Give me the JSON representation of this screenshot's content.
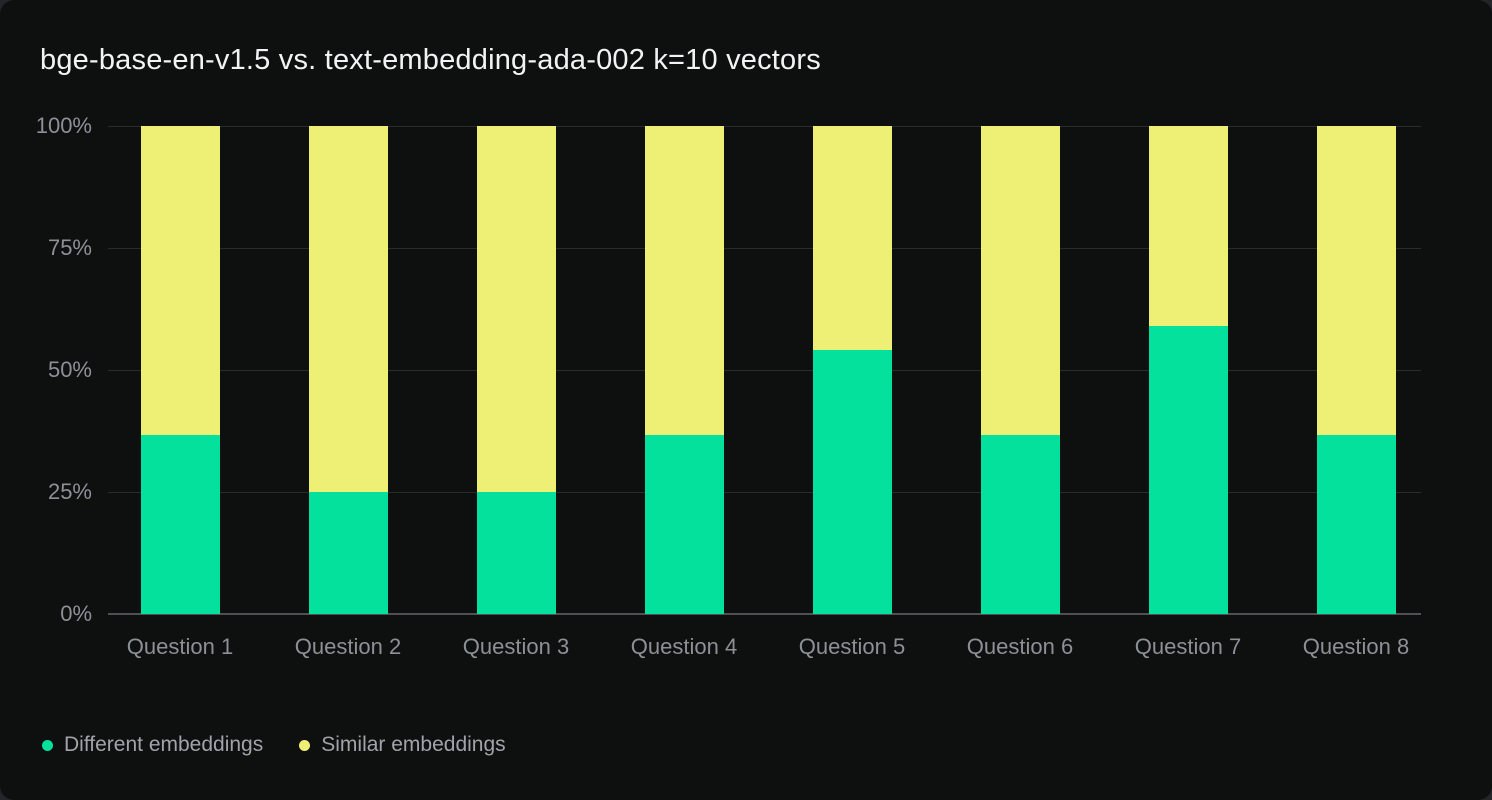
{
  "title": "bge-base-en-v1.5 vs. text-embedding-ada-002 k=10 vectors",
  "colors": {
    "card_background": "#0e100f",
    "outer_background": "#232528",
    "title_text": "#f2f3f4",
    "axis_text": "#8c9097",
    "legend_text": "#a0a3a9",
    "gridline": "#2a2b2c",
    "baseline": "#4e5055",
    "different_embeddings": "#03e19c",
    "similar_embeddings": "#eef076"
  },
  "chart_data": {
    "type": "bar",
    "stacked": true,
    "title": "bge-base-en-v1.5 vs. text-embedding-ada-002 k=10 vectors",
    "categories": [
      "Question 1",
      "Question 2",
      "Question 3",
      "Question 4",
      "Question 5",
      "Question 6",
      "Question 7",
      "Question 8"
    ],
    "series": [
      {
        "name": "Different embeddings",
        "color": "#03e19c",
        "values": [
          36.6,
          25,
          25,
          36.6,
          54,
          36.6,
          59,
          36.6
        ]
      },
      {
        "name": "Similar embeddings",
        "color": "#eef076",
        "values": [
          63.4,
          75,
          75,
          63.4,
          46,
          63.4,
          41,
          63.4
        ]
      }
    ],
    "y_ticks": [
      "0%",
      "25%",
      "50%",
      "75%",
      "100%"
    ],
    "y_tick_values": [
      0,
      25,
      50,
      75,
      100
    ],
    "ylim": [
      0,
      100
    ],
    "xlabel": "",
    "ylabel": "",
    "grid": "horizontal",
    "legend_position": "bottom-left"
  }
}
